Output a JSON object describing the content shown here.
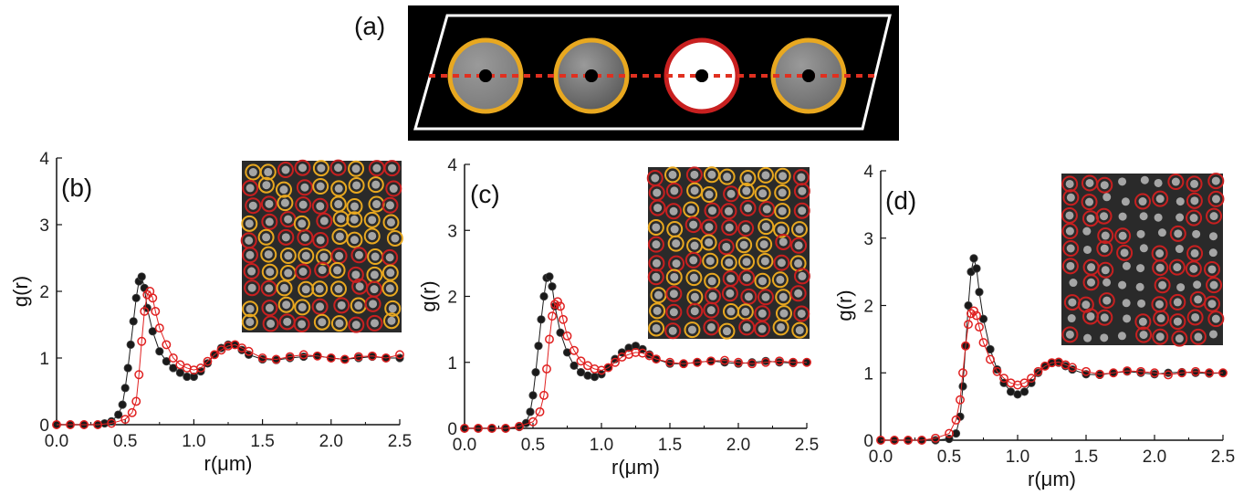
{
  "figure": {
    "panel_a_label": "(a)",
    "colors": {
      "black_series": "#1a1a1a",
      "red_series": "#e02020",
      "diagram_background": "#000000",
      "particle_ring_yellow": "#e8a820",
      "particle_ring_red": "#c82020",
      "dotted_line": "#e03020"
    }
  },
  "chart_data": [
    {
      "type": "scatter",
      "panel_label": "(b)",
      "xlabel": "r(μm)",
      "ylabel": "g(r)",
      "xlim": [
        0.0,
        2.5
      ],
      "ylim": [
        0,
        4
      ],
      "xticks": [
        "0.0",
        "0.5",
        "1.0",
        "1.5",
        "2.0",
        "2.5"
      ],
      "yticks": [
        "0",
        "1",
        "2",
        "3",
        "4"
      ],
      "inset_rings": [
        "yellow",
        "red"
      ],
      "series": [
        {
          "color": "black",
          "x": [
            0.0,
            0.1,
            0.2,
            0.3,
            0.35,
            0.4,
            0.45,
            0.48,
            0.5,
            0.52,
            0.54,
            0.56,
            0.58,
            0.6,
            0.62,
            0.64,
            0.66,
            0.7,
            0.75,
            0.8,
            0.85,
            0.9,
            0.95,
            1.0,
            1.05,
            1.1,
            1.15,
            1.2,
            1.25,
            1.3,
            1.35,
            1.4,
            1.5,
            1.6,
            1.7,
            1.8,
            1.9,
            2.0,
            2.1,
            2.2,
            2.3,
            2.4,
            2.5
          ],
          "y": [
            0,
            0,
            0,
            0,
            0.02,
            0.05,
            0.15,
            0.3,
            0.55,
            0.85,
            1.2,
            1.55,
            1.9,
            2.15,
            2.22,
            2.05,
            1.75,
            1.4,
            1.1,
            0.95,
            0.85,
            0.78,
            0.72,
            0.72,
            0.8,
            0.92,
            1.05,
            1.15,
            1.2,
            1.2,
            1.12,
            1.05,
            0.98,
            0.97,
            1.0,
            1.02,
            1.03,
            1.0,
            0.98,
            1.0,
            1.02,
            1.0,
            1.0
          ]
        },
        {
          "color": "red",
          "x": [
            0.0,
            0.1,
            0.2,
            0.3,
            0.4,
            0.5,
            0.55,
            0.58,
            0.6,
            0.62,
            0.64,
            0.66,
            0.68,
            0.7,
            0.72,
            0.75,
            0.8,
            0.85,
            0.9,
            0.95,
            1.0,
            1.05,
            1.1,
            1.15,
            1.2,
            1.25,
            1.3,
            1.35,
            1.4,
            1.5,
            1.6,
            1.7,
            1.8,
            1.9,
            2.0,
            2.1,
            2.2,
            2.3,
            2.4,
            2.5
          ],
          "y": [
            0,
            0,
            0,
            0,
            0.02,
            0.08,
            0.18,
            0.35,
            0.75,
            1.25,
            1.7,
            1.95,
            2.0,
            1.9,
            1.7,
            1.45,
            1.2,
            1.0,
            0.9,
            0.85,
            0.82,
            0.85,
            0.95,
            1.05,
            1.12,
            1.18,
            1.2,
            1.15,
            1.1,
            1.0,
            0.98,
            1.02,
            1.05,
            1.03,
            1.0,
            0.98,
            1.02,
            1.03,
            1.0,
            1.05
          ]
        }
      ]
    },
    {
      "type": "scatter",
      "panel_label": "(c)",
      "xlabel": "r(μm)",
      "ylabel": "g(r)",
      "xlim": [
        0.0,
        2.5
      ],
      "ylim": [
        0,
        4
      ],
      "xticks": [
        "0.0",
        "0.5",
        "1.0",
        "1.5",
        "2.0",
        "2.5"
      ],
      "yticks": [
        "0",
        "1",
        "2",
        "3",
        "4"
      ],
      "inset_rings": [
        "red",
        "yellow"
      ],
      "series": [
        {
          "color": "black",
          "x": [
            0.0,
            0.1,
            0.2,
            0.3,
            0.4,
            0.45,
            0.48,
            0.5,
            0.52,
            0.54,
            0.56,
            0.58,
            0.6,
            0.62,
            0.64,
            0.66,
            0.7,
            0.75,
            0.8,
            0.85,
            0.9,
            0.95,
            1.0,
            1.05,
            1.1,
            1.15,
            1.2,
            1.25,
            1.3,
            1.35,
            1.4,
            1.5,
            1.6,
            1.7,
            1.8,
            1.9,
            2.0,
            2.1,
            2.2,
            2.3,
            2.4,
            2.5
          ],
          "y": [
            0,
            0,
            0,
            0,
            0.02,
            0.08,
            0.25,
            0.5,
            0.85,
            1.25,
            1.65,
            2.0,
            2.28,
            2.3,
            2.15,
            1.85,
            1.45,
            1.15,
            0.95,
            0.85,
            0.8,
            0.78,
            0.82,
            0.92,
            1.05,
            1.15,
            1.22,
            1.25,
            1.2,
            1.12,
            1.05,
            0.98,
            0.98,
            1.0,
            1.02,
            1.0,
            0.98,
            1.0,
            1.02,
            1.0,
            0.99,
            1.0
          ]
        },
        {
          "color": "red",
          "x": [
            0.0,
            0.1,
            0.2,
            0.3,
            0.4,
            0.5,
            0.55,
            0.58,
            0.6,
            0.62,
            0.64,
            0.66,
            0.68,
            0.7,
            0.72,
            0.75,
            0.8,
            0.85,
            0.9,
            0.95,
            1.0,
            1.05,
            1.1,
            1.15,
            1.2,
            1.25,
            1.3,
            1.35,
            1.4,
            1.5,
            1.6,
            1.7,
            1.8,
            1.9,
            2.0,
            2.1,
            2.2,
            2.3,
            2.4,
            2.5
          ],
          "y": [
            0,
            0,
            0,
            0,
            0.03,
            0.1,
            0.25,
            0.5,
            0.9,
            1.35,
            1.7,
            1.88,
            1.92,
            1.85,
            1.65,
            1.4,
            1.18,
            1.02,
            0.95,
            0.9,
            0.88,
            0.92,
            1.0,
            1.08,
            1.12,
            1.15,
            1.14,
            1.1,
            1.05,
            1.0,
            0.98,
            1.0,
            1.02,
            1.03,
            1.0,
            0.98,
            1.0,
            1.02,
            1.0,
            1.0
          ]
        }
      ]
    },
    {
      "type": "scatter",
      "panel_label": "(d)",
      "xlabel": "r(μm)",
      "ylabel": "g(r)",
      "xlim": [
        0.0,
        2.5
      ],
      "ylim": [
        0,
        4
      ],
      "xticks": [
        "0.0",
        "0.5",
        "1.0",
        "1.5",
        "2.0",
        "2.5"
      ],
      "yticks": [
        "0",
        "1",
        "2",
        "3",
        "4"
      ],
      "inset_rings": [
        "red"
      ],
      "series": [
        {
          "color": "black",
          "x": [
            0.0,
            0.1,
            0.2,
            0.3,
            0.4,
            0.5,
            0.55,
            0.58,
            0.6,
            0.62,
            0.64,
            0.66,
            0.68,
            0.7,
            0.72,
            0.75,
            0.8,
            0.85,
            0.9,
            0.95,
            1.0,
            1.05,
            1.1,
            1.15,
            1.2,
            1.25,
            1.3,
            1.35,
            1.4,
            1.5,
            1.6,
            1.7,
            1.8,
            1.9,
            2.0,
            2.1,
            2.2,
            2.3,
            2.4,
            2.5
          ],
          "y": [
            0,
            0,
            0,
            0,
            0,
            0.02,
            0.1,
            0.35,
            0.8,
            1.4,
            2.0,
            2.5,
            2.7,
            2.55,
            2.2,
            1.8,
            1.35,
            1.05,
            0.85,
            0.72,
            0.68,
            0.72,
            0.85,
            1.0,
            1.1,
            1.15,
            1.15,
            1.1,
            1.05,
            0.98,
            0.97,
            1.0,
            1.02,
            1.0,
            0.98,
            1.0,
            1.01,
            1.0,
            0.99,
            1.0
          ]
        },
        {
          "color": "red",
          "x": [
            0.0,
            0.1,
            0.2,
            0.3,
            0.4,
            0.5,
            0.55,
            0.58,
            0.6,
            0.62,
            0.64,
            0.66,
            0.68,
            0.7,
            0.72,
            0.75,
            0.8,
            0.85,
            0.9,
            0.95,
            1.0,
            1.05,
            1.1,
            1.15,
            1.2,
            1.25,
            1.3,
            1.35,
            1.4,
            1.5,
            1.6,
            1.7,
            1.8,
            1.9,
            2.0,
            2.1,
            2.2,
            2.3,
            2.4,
            2.5
          ],
          "y": [
            0,
            0,
            0,
            0,
            0.03,
            0.1,
            0.3,
            0.6,
            1.0,
            1.4,
            1.72,
            1.88,
            1.92,
            1.85,
            1.68,
            1.45,
            1.2,
            1.02,
            0.92,
            0.85,
            0.82,
            0.85,
            0.92,
            1.02,
            1.1,
            1.15,
            1.16,
            1.12,
            1.08,
            1.02,
            0.98,
            1.0,
            1.03,
            1.02,
            1.0,
            0.97,
            1.0,
            1.02,
            1.0,
            1.0
          ]
        }
      ]
    }
  ]
}
